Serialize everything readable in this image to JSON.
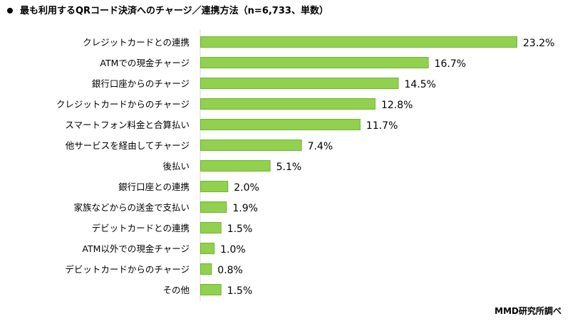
{
  "title": "最も利用するQRコード決済へのチャージ／連携方法（n=6,733、単数）",
  "credit": "MMD研究所調べ",
  "colors": {
    "bar_fill": "#92d050",
    "bar_border": "#6cb82c",
    "axis": "#d9d9d9"
  },
  "chart_data": {
    "type": "bar",
    "orientation": "horizontal",
    "title": "最も利用するQRコード決済へのチャージ／連携方法（n=6,733、単数）",
    "categories": [
      "クレジットカードとの連携",
      "ATMでの現金チャージ",
      "銀行口座からのチャージ",
      "クレジットカードからのチャージ",
      "スマートフォン料金と合算払い",
      "他サービスを経由してチャージ",
      "後払い",
      "銀行口座との連携",
      "家族などからの送金で支払い",
      "デビットカードとの連携",
      "ATM以外での現金チャージ",
      "デビットカードからのチャージ",
      "その他"
    ],
    "values": [
      23.2,
      16.7,
      14.5,
      12.8,
      11.7,
      7.4,
      5.1,
      2.0,
      1.9,
      1.5,
      1.0,
      0.8,
      1.5
    ],
    "labels": [
      "23.2%",
      "16.7%",
      "14.5%",
      "12.8%",
      "11.7%",
      "7.4%",
      "5.1%",
      "2.0%",
      "1.9%",
      "1.5%",
      "1.0%",
      "0.8%",
      "1.5%"
    ],
    "unit": "%",
    "grid": false
  }
}
